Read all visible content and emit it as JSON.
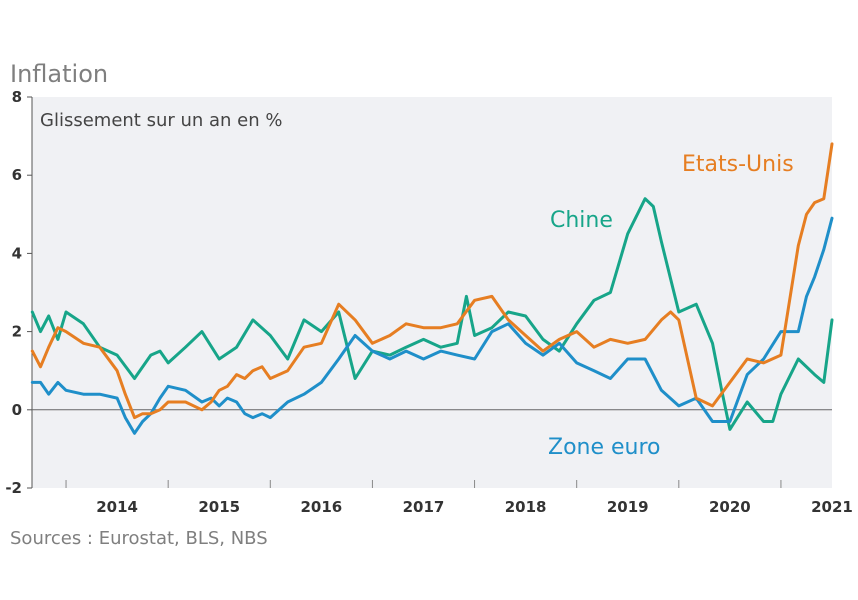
{
  "title": "Inflation",
  "source": "Sources : Eurostat, BLS, NBS",
  "chart_data": {
    "type": "line",
    "title": "Inflation",
    "ylabel": "Glissement sur un an en %",
    "ylim": [
      -2,
      8
    ],
    "yticks": [
      "8",
      "6",
      "4",
      "2",
      "0",
      "-2"
    ],
    "ytick_values": [
      8,
      6,
      4,
      2,
      0,
      -2
    ],
    "xlabels": [
      "2014",
      "2015",
      "2016",
      "2017",
      "2018",
      "2019",
      "2020",
      "2021"
    ],
    "xlim": [
      2013.6667,
      2021.5
    ],
    "colors": {
      "Etats-Unis": "#e67e22",
      "Chine": "#17a589",
      "Zone euro": "#1f8fc9",
      "bg": "#f0f1f4"
    },
    "series": [
      {
        "name": "Etats-Unis",
        "x": [
          2013.67,
          2013.75,
          2013.83,
          2013.92,
          2014.0,
          2014.17,
          2014.33,
          2014.5,
          2014.58,
          2014.67,
          2014.75,
          2014.83,
          2014.92,
          2015.0,
          2015.17,
          2015.33,
          2015.42,
          2015.5,
          2015.58,
          2015.67,
          2015.75,
          2015.83,
          2015.92,
          2016.0,
          2016.17,
          2016.33,
          2016.5,
          2016.67,
          2016.83,
          2017.0,
          2017.17,
          2017.33,
          2017.5,
          2017.67,
          2017.83,
          2018.0,
          2018.17,
          2018.33,
          2018.5,
          2018.67,
          2018.83,
          2019.0,
          2019.17,
          2019.33,
          2019.5,
          2019.67,
          2019.83,
          2019.92,
          2020.0,
          2020.17,
          2020.33,
          2020.5,
          2020.67,
          2020.83,
          2021.0,
          2021.17,
          2021.25,
          2021.33,
          2021.42,
          2021.5
        ],
        "values": [
          1.5,
          1.1,
          1.6,
          2.1,
          2.0,
          1.7,
          1.6,
          1.0,
          0.4,
          -0.2,
          -0.1,
          -0.1,
          0.0,
          0.2,
          0.2,
          0.0,
          0.2,
          0.5,
          0.6,
          0.9,
          0.8,
          1.0,
          1.1,
          0.8,
          1.0,
          1.6,
          1.7,
          2.7,
          2.3,
          1.7,
          1.9,
          2.2,
          2.1,
          2.1,
          2.2,
          2.8,
          2.9,
          2.3,
          1.9,
          1.5,
          1.8,
          2.0,
          1.6,
          1.8,
          1.7,
          1.8,
          2.3,
          2.5,
          2.3,
          0.3,
          0.1,
          0.7,
          1.3,
          1.2,
          1.4,
          4.2,
          5.0,
          5.3,
          5.4,
          6.8
        ]
      },
      {
        "name": "Chine",
        "x": [
          2013.67,
          2013.75,
          2013.83,
          2013.92,
          2014.0,
          2014.17,
          2014.33,
          2014.5,
          2014.67,
          2014.83,
          2014.92,
          2015.0,
          2015.17,
          2015.33,
          2015.5,
          2015.67,
          2015.83,
          2016.0,
          2016.17,
          2016.33,
          2016.5,
          2016.67,
          2016.83,
          2017.0,
          2017.17,
          2017.33,
          2017.5,
          2017.67,
          2017.83,
          2017.92,
          2018.0,
          2018.17,
          2018.33,
          2018.5,
          2018.67,
          2018.83,
          2019.0,
          2019.17,
          2019.33,
          2019.5,
          2019.67,
          2019.75,
          2019.83,
          2020.0,
          2020.17,
          2020.33,
          2020.42,
          2020.5,
          2020.67,
          2020.83,
          2020.92,
          2021.0,
          2021.17,
          2021.33,
          2021.42,
          2021.5
        ],
        "values": [
          2.5,
          2.0,
          2.4,
          1.8,
          2.5,
          2.2,
          1.6,
          1.4,
          0.8,
          1.4,
          1.5,
          1.2,
          1.6,
          2.0,
          1.3,
          1.6,
          2.3,
          1.9,
          1.3,
          2.3,
          2.0,
          2.5,
          0.8,
          1.5,
          1.4,
          1.6,
          1.8,
          1.6,
          1.7,
          2.9,
          1.9,
          2.1,
          2.5,
          2.4,
          1.8,
          1.5,
          2.2,
          2.8,
          3.0,
          4.5,
          5.4,
          5.2,
          4.3,
          2.5,
          2.7,
          1.7,
          0.5,
          -0.5,
          0.2,
          -0.3,
          -0.3,
          0.4,
          1.3,
          0.9,
          0.7,
          2.3
        ]
      },
      {
        "name": "Zone euro",
        "x": [
          2013.67,
          2013.75,
          2013.83,
          2013.92,
          2014.0,
          2014.17,
          2014.33,
          2014.5,
          2014.58,
          2014.67,
          2014.75,
          2014.83,
          2014.92,
          2015.0,
          2015.17,
          2015.33,
          2015.42,
          2015.5,
          2015.58,
          2015.67,
          2015.75,
          2015.83,
          2015.92,
          2016.0,
          2016.17,
          2016.33,
          2016.5,
          2016.67,
          2016.83,
          2017.0,
          2017.17,
          2017.33,
          2017.5,
          2017.67,
          2017.83,
          2018.0,
          2018.17,
          2018.33,
          2018.5,
          2018.67,
          2018.83,
          2019.0,
          2019.17,
          2019.33,
          2019.5,
          2019.67,
          2019.83,
          2020.0,
          2020.17,
          2020.33,
          2020.5,
          2020.67,
          2020.83,
          2021.0,
          2021.17,
          2021.25,
          2021.33,
          2021.42,
          2021.5
        ],
        "values": [
          0.7,
          0.7,
          0.4,
          0.7,
          0.5,
          0.4,
          0.4,
          0.3,
          -0.2,
          -0.6,
          -0.3,
          -0.1,
          0.3,
          0.6,
          0.5,
          0.2,
          0.3,
          0.1,
          0.3,
          0.2,
          -0.1,
          -0.2,
          -0.1,
          -0.2,
          0.2,
          0.4,
          0.7,
          1.3,
          1.9,
          1.5,
          1.3,
          1.5,
          1.3,
          1.5,
          1.4,
          1.3,
          2.0,
          2.2,
          1.7,
          1.4,
          1.7,
          1.2,
          1.0,
          0.8,
          1.3,
          1.3,
          0.5,
          0.1,
          0.3,
          -0.3,
          -0.3,
          0.9,
          1.3,
          2.0,
          2.0,
          2.9,
          3.4,
          4.1,
          4.9
        ]
      }
    ]
  }
}
